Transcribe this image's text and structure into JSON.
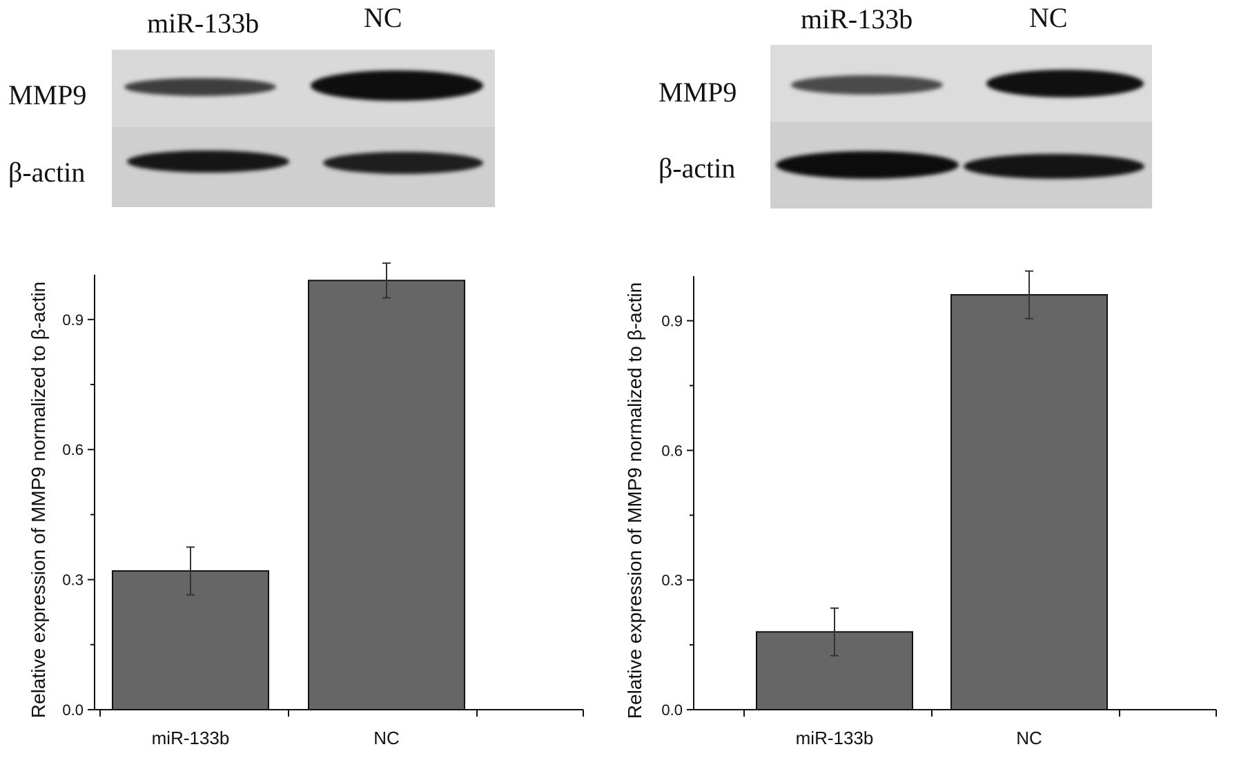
{
  "panels": [
    {
      "blot": {
        "lane_labels": [
          "miR-133b",
          "NC"
        ],
        "row_labels": [
          "MMP9",
          "β-actin"
        ]
      }
    },
    {
      "blot": {
        "lane_labels": [
          "miR-133b",
          "NC"
        ],
        "row_labels": [
          "MMP9",
          "β-actin"
        ]
      }
    }
  ],
  "chart_data": [
    {
      "type": "bar",
      "categories": [
        "miR-133b",
        "NC"
      ],
      "values": [
        0.32,
        0.99
      ],
      "errors": [
        0.055,
        0.04
      ],
      "title": "",
      "xlabel": "",
      "ylabel": "Relative expression of MMP9 normalized to β-actin",
      "ylim": [
        0,
        1.0
      ],
      "yticks": [
        0.0,
        0.3,
        0.6,
        0.9
      ],
      "ytick_labels": [
        "0.0",
        "0.3",
        "0.6",
        "0.9"
      ],
      "bar_color": "#666666",
      "grid": false
    },
    {
      "type": "bar",
      "categories": [
        "miR-133b",
        "NC"
      ],
      "values": [
        0.18,
        0.96
      ],
      "errors": [
        0.055,
        0.055
      ],
      "title": "",
      "xlabel": "",
      "ylabel": "Relative expression of MMP9 normalized to β-actin",
      "ylim": [
        0,
        1.0
      ],
      "yticks": [
        0.0,
        0.3,
        0.6,
        0.9
      ],
      "ytick_labels": [
        "0.0",
        "0.3",
        "0.6",
        "0.9"
      ],
      "bar_color": "#666666",
      "grid": false
    }
  ]
}
